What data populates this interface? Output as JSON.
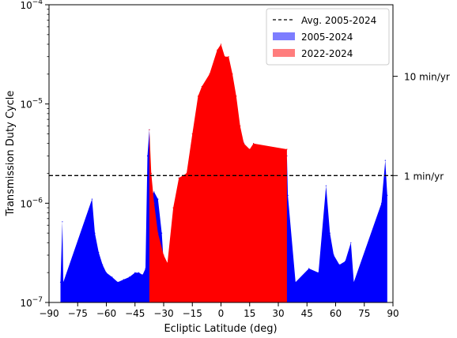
{
  "chart_data": {
    "type": "area",
    "xlabel": "Ecliptic Latitude (deg)",
    "ylabel": "Transmission Duty Cycle",
    "xlim": [
      -90,
      90
    ],
    "ylim": [
      1e-07,
      0.0001
    ],
    "yscale": "log",
    "x_ticks": [
      -90,
      -75,
      -60,
      -45,
      -30,
      -15,
      0,
      15,
      30,
      45,
      60,
      75,
      90
    ],
    "x_tick_labels": [
      "−90",
      "−75",
      "−60",
      "−45",
      "−30",
      "−15",
      "0",
      "15",
      "30",
      "45",
      "60",
      "75",
      "90"
    ],
    "y_ticks": [
      1e-07,
      1e-06,
      1e-05,
      0.0001
    ],
    "y_tick_base": [
      "10",
      "10",
      "10",
      "10"
    ],
    "y_tick_exp": [
      "−7",
      "−6",
      "−5",
      "−4"
    ],
    "secondary_y_ticks": [
      {
        "value": 1.9e-06,
        "label": "1 min/yr"
      },
      {
        "value": 1.9e-05,
        "label": "10 min/yr"
      }
    ],
    "reference_line": {
      "name": "Avg. 2005-2024",
      "value": 1.9e-06,
      "style": "dashed",
      "color": "#000000"
    },
    "legend_position": "top-right",
    "legend": [
      {
        "label": "Avg. 2005-2024",
        "kind": "dashed-line",
        "color": "#000000"
      },
      {
        "label": "2005-2024",
        "kind": "patch",
        "color": "#7d7dff"
      },
      {
        "label": "2022-2024",
        "kind": "patch",
        "color": "#ff7d7d"
      }
    ],
    "series": [
      {
        "name": "2005-2024",
        "color": "#0000ff",
        "points": [
          [
            -84,
            1.6e-07
          ],
          [
            -83,
            6.5e-07
          ],
          [
            -82.5,
            1.6e-07
          ],
          [
            -67.5,
            1.1e-06
          ],
          [
            -66,
            5e-07
          ],
          [
            -64,
            3.2e-07
          ],
          [
            -62,
            2.4e-07
          ],
          [
            -60,
            2e-07
          ],
          [
            -57,
            1.8e-07
          ],
          [
            -54,
            1.6e-07
          ],
          [
            -51,
            1.7e-07
          ],
          [
            -48,
            1.8e-07
          ],
          [
            -45,
            2e-07
          ],
          [
            -43,
            2e-07
          ],
          [
            -41,
            1.9e-07
          ],
          [
            -39.5,
            2.2e-07
          ],
          [
            -38.5,
            3e-06
          ],
          [
            -37.5,
            5.5e-06
          ],
          [
            -36.5,
            1.2e-06
          ],
          [
            -35,
            1.3e-06
          ],
          [
            -33,
            1.1e-06
          ],
          [
            -31,
            5e-07
          ],
          [
            -30,
            2.5e-07
          ],
          [
            -28,
            1.6e-07
          ],
          [
            -25,
            6e-07
          ],
          [
            -22,
            1.8e-06
          ],
          [
            -18,
            1.8e-06
          ],
          [
            -15,
            4e-06
          ],
          [
            -10,
            1e-05
          ],
          [
            0,
            3.5e-05
          ],
          [
            10,
            5e-06
          ],
          [
            15,
            3e-06
          ],
          [
            17,
            4e-06
          ],
          [
            18.5,
            3e-07
          ],
          [
            19.5,
            1.6e-07
          ],
          [
            20.5,
            1.3e-07
          ],
          [
            26,
            1.2e-06
          ],
          [
            27,
            1.6e-07
          ],
          [
            29,
            2.6e-07
          ],
          [
            30,
            1.5e-07
          ],
          [
            34.5,
            3e-06
          ],
          [
            35,
            1.2e-06
          ],
          [
            39,
            1.6e-07
          ],
          [
            46,
            2.2e-07
          ],
          [
            51,
            2e-07
          ],
          [
            55,
            1.5e-06
          ],
          [
            57,
            5e-07
          ],
          [
            59,
            3e-07
          ],
          [
            62,
            2.4e-07
          ],
          [
            65,
            2.6e-07
          ],
          [
            68,
            4e-07
          ],
          [
            69.5,
            1.6e-07
          ],
          [
            84,
            1e-06
          ],
          [
            86,
            2.7e-06
          ],
          [
            87,
            1.2e-06
          ]
        ]
      },
      {
        "name": "2022-2024",
        "color": "#ff0000",
        "points": [
          [
            -37.5,
            5.5e-06
          ],
          [
            -36.5,
            2e-06
          ],
          [
            -35,
            1e-06
          ],
          [
            -33,
            5e-07
          ],
          [
            -30,
            3e-07
          ],
          [
            -28,
            2.5e-07
          ],
          [
            -25,
            9e-07
          ],
          [
            -22,
            1.8e-06
          ],
          [
            -18,
            2e-06
          ],
          [
            -15,
            5e-06
          ],
          [
            -12,
            1.2e-05
          ],
          [
            -10,
            1.5e-05
          ],
          [
            -6,
            2e-05
          ],
          [
            -2,
            3.5e-05
          ],
          [
            0,
            4e-05
          ],
          [
            2,
            3e-05
          ],
          [
            4,
            3e-05
          ],
          [
            6,
            2e-05
          ],
          [
            8,
            1.2e-05
          ],
          [
            10,
            6e-06
          ],
          [
            12,
            4e-06
          ],
          [
            15,
            3.5e-06
          ],
          [
            17,
            4e-06
          ],
          [
            34.5,
            3.5e-06
          ]
        ]
      }
    ]
  }
}
